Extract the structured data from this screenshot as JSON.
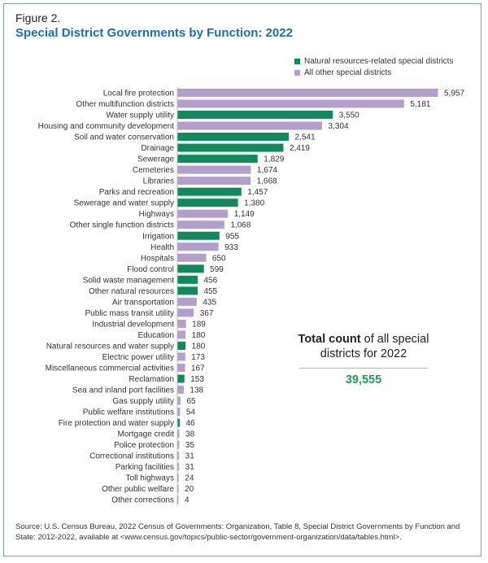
{
  "figure_label": "Figure 2.",
  "title": "Special District Governments by Function: 2022",
  "legend": [
    {
      "key": "natural",
      "label": "Natural resources-related special districts",
      "color": "#0e8a5c"
    },
    {
      "key": "other",
      "label": "All other special districts",
      "color": "#b39fcd"
    }
  ],
  "total": {
    "label_bold": "Total count",
    "label_rest": " of all special districts for 2022",
    "value": "39,555",
    "value_color": "#1f9a5c"
  },
  "source": "Source: U.S. Census Bureau, 2022 Census of Governments: Organization, Table 8, Special District Governments by Function and State: 2012-2022, available at <www.census.gov/topics/public-sector/government-organization/data/tables.html>.",
  "chart_data": {
    "type": "bar",
    "orientation": "horizontal",
    "title": "Special District Governments by Function: 2022",
    "xlabel": "",
    "ylabel": "",
    "xlim": [
      0,
      5957
    ],
    "grid": false,
    "legend_position": "top-right",
    "series_names": {
      "natural": "Natural resources-related special districts",
      "other": "All other special districts"
    },
    "categories": [
      "Local fire protection",
      "Other multifunction districts",
      "Water supply utility",
      "Housing and community development",
      "Soil and water conservation",
      "Drainage",
      "Sewerage",
      "Cemeteries",
      "Libraries",
      "Parks and recreation",
      "Sewerage and water supply",
      "Highways",
      "Other single function districts",
      "Irrigation",
      "Health",
      "Hospitals",
      "Flood control",
      "Solid waste management",
      "Other natural resources",
      "Air transportation",
      "Public mass transit utility",
      "Industrial development",
      "Education",
      "Natural resources and water supply",
      "Electric power utility",
      "Miscellaneous commercial activities",
      "Reclamation",
      "Sea and inland port facilities",
      "Gas supply utility",
      "Public welfare institutions",
      "Fire protection and water supply",
      "Mortgage credit",
      "Police protection",
      "Correctional institutions",
      "Parking facilities",
      "Toll highways",
      "Other public welfare",
      "Other corrections"
    ],
    "values": [
      5957,
      5181,
      3550,
      3304,
      2541,
      2419,
      1829,
      1674,
      1668,
      1457,
      1380,
      1149,
      1068,
      955,
      933,
      650,
      599,
      456,
      455,
      435,
      367,
      189,
      180,
      180,
      173,
      167,
      153,
      138,
      65,
      54,
      46,
      38,
      35,
      31,
      31,
      24,
      20,
      4
    ],
    "value_labels": [
      "5,957",
      "5,181",
      "3,550",
      "3,304",
      "2,541",
      "2,419",
      "1,829",
      "1,674",
      "1,668",
      "1,457",
      "1,380",
      "1,149",
      "1,068",
      "955",
      "933",
      "650",
      "599",
      "456",
      "455",
      "435",
      "367",
      "189",
      "180",
      "180",
      "173",
      "167",
      "153",
      "138",
      "65",
      "54",
      "46",
      "38",
      "35",
      "31",
      "31",
      "24",
      "20",
      "4"
    ],
    "groups": [
      "other",
      "other",
      "natural",
      "other",
      "natural",
      "natural",
      "natural",
      "other",
      "other",
      "natural",
      "natural",
      "other",
      "other",
      "natural",
      "other",
      "other",
      "natural",
      "natural",
      "natural",
      "other",
      "other",
      "other",
      "other",
      "natural",
      "other",
      "other",
      "natural",
      "other",
      "other",
      "other",
      "natural",
      "other",
      "other",
      "other",
      "other",
      "other",
      "other",
      "other"
    ]
  }
}
